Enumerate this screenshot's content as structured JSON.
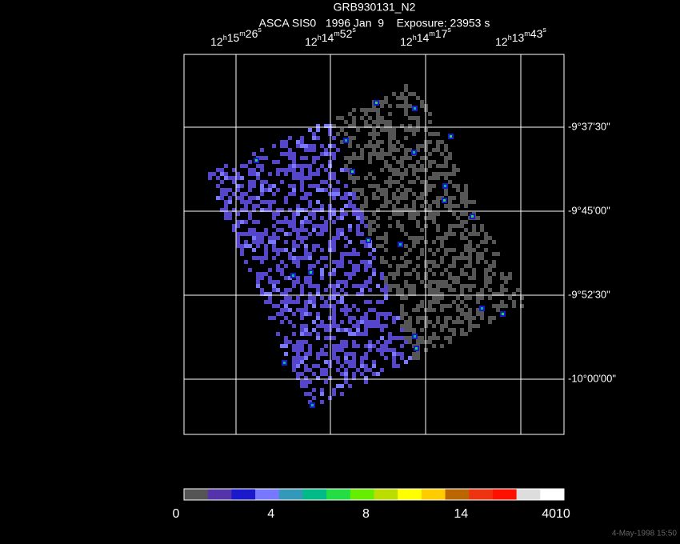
{
  "header": {
    "title": "GRB930131_N2",
    "subtitle": "ASCA SIS0   1996 Jan  9    Exposure: 23953 s"
  },
  "ra_units": [
    "h",
    "m",
    "s"
  ],
  "ra_labels": [
    {
      "hours": "12",
      "minutes": "15",
      "seconds": "26"
    },
    {
      "hours": "12",
      "minutes": "14",
      "seconds": "52"
    },
    {
      "hours": "12",
      "minutes": "14",
      "seconds": "17"
    },
    {
      "hours": "12",
      "minutes": "13",
      "seconds": "43"
    }
  ],
  "dec_labels": [
    "-9°37'30\"",
    "-9°45'00\"",
    "-9°52'30\"",
    "-10°00'00\""
  ],
  "colorbar": {
    "colors": [
      "#555555",
      "#5533aa",
      "#1a1acc",
      "#7777ff",
      "#3399bb",
      "#00bb88",
      "#22dd44",
      "#66ee00",
      "#bbdd00",
      "#ffff00",
      "#ffcc00",
      "#bb6600",
      "#ee3311",
      "#ff1100",
      "#dddddd",
      "#ffffff"
    ],
    "labels": [
      "0",
      "4",
      "8",
      "14",
      "4010"
    ]
  },
  "footer": "4-May-1998 15:50"
}
